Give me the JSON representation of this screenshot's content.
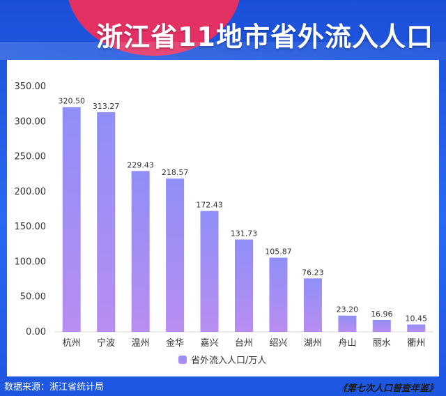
{
  "header": {
    "title": "浙江省11地市省外流入人口"
  },
  "footer": {
    "source": "数据来源：浙江省统计局",
    "book": "《第七次人口普查年鉴》"
  },
  "colors": {
    "bar_top": "#8f8ff7",
    "bar_bottom": "#b88df0",
    "background": "#1d5ae6",
    "accent": "#ef2f5e"
  },
  "chart_data": {
    "type": "bar",
    "title": "浙江省11地市省外流入人口",
    "categories": [
      "杭州",
      "宁波",
      "温州",
      "金华",
      "嘉兴",
      "台州",
      "绍兴",
      "湖州",
      "舟山",
      "丽水",
      "衢州"
    ],
    "series": [
      {
        "name": "省外流入人口/万人",
        "values": [
          320.5,
          313.27,
          229.43,
          218.57,
          172.43,
          131.73,
          105.87,
          76.23,
          23.2,
          16.96,
          10.45
        ]
      }
    ],
    "data_labels": [
      "320.50",
      "313.27",
      "229.43",
      "218.57",
      "172.43",
      "131.73",
      "105.87",
      "76.23",
      "23.20",
      "16.96",
      "10.45"
    ],
    "yticks": [
      "0.00",
      "50.00",
      "100.00",
      "150.00",
      "200.00",
      "250.00",
      "300.00",
      "350.00"
    ],
    "ylim": [
      0,
      350
    ],
    "grid": false,
    "legend_position": "bottom"
  }
}
